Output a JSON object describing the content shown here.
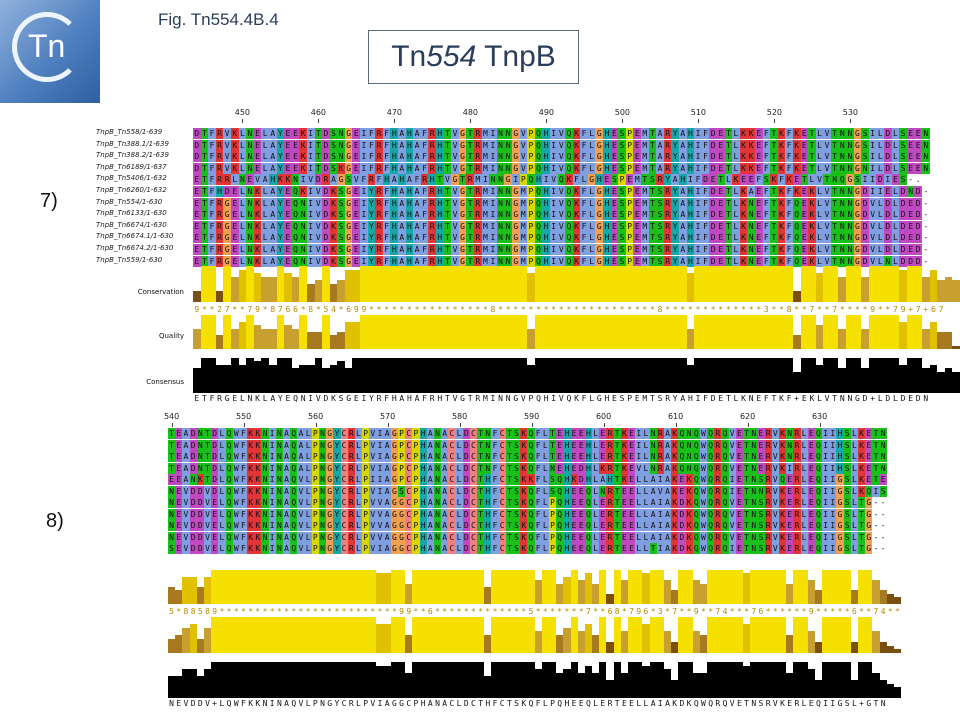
{
  "logo": {
    "text": "Tn"
  },
  "figure_label": "Fig. Tn554.4B.4",
  "title": {
    "prefix": "Tn",
    "italic": "554",
    "suffix": " TnpB"
  },
  "palette": {
    "A": "#7f9fe0",
    "I": "#7f9fe0",
    "L": "#7f9fe0",
    "M": "#7f9fe0",
    "F": "#7f9fe0",
    "W": "#7f9fe0",
    "V": "#7f9fe0",
    "C": "#f08080",
    "K": "#e23636",
    "R": "#e23636",
    "E": "#c048c0",
    "D": "#c048c0",
    "N": "#19c019",
    "Q": "#19c019",
    "S": "#19c019",
    "T": "#19c019",
    "G": "#f0a050",
    "P": "#d8d800",
    "H": "#16a8a8",
    "Y": "#16a8a8",
    "-": "#ffffff",
    ".": "#ffffff"
  },
  "panel7": {
    "marker": "7)",
    "ruler": [
      {
        "label": "450",
        "col": 6
      },
      {
        "label": "460",
        "col": 16
      },
      {
        "label": "470",
        "col": 26
      },
      {
        "label": "480",
        "col": 36
      },
      {
        "label": "490",
        "col": 46
      },
      {
        "label": "500",
        "col": 56
      },
      {
        "label": "510",
        "col": 66
      },
      {
        "label": "520",
        "col": 76
      },
      {
        "label": "530",
        "col": 86
      }
    ],
    "names": [
      "TnpB_Tn558/1-639",
      "TnpB_Tn388.1/1-639",
      "TnpB_Tn388.2/1-639",
      "TnpB_Tn6189/1-637",
      "TnpB_Tn5406/1-632",
      "TnpB_Tn6260/1-632",
      "TnpB_Tn554/1-630",
      "TnpB_Tn6133/1-630",
      "TnpB_Tn6674/1-630",
      "TnpB_Tn6674.1/1-630",
      "TnpB_Tn6674.2/1-630",
      "TnpB_Tn559/1-630"
    ],
    "rows": [
      "DTFRVKLNELAYEEKITDSNGEIFRFHAHAFRHTVGTRMINNGVPQHIVQKFLGHESPEMTARYAHIFDETLKKEFTKFKETLVTNNGSILDLSEEN",
      "DTFRVKLNELAYEEKITDSNGEIFRFHAHAFRHTVGTRMINNGVPQHIVQKFLGHESPEMTARYAHIFDETLKKEFTKFKETLVTNNGSILDLSEEN",
      "DTFRVKLNELAYEEKITDSNGEIFRFHAHAFRHTVGTRMINNGVPQHIVQKFLGHESPEMTARYAHIFDETLKKEFTKFKETLVTNNGSILDLSEEN",
      "DTFRVKLNELAYEEKITDSKGEIFRFHAHAFRHTVGTRMINNGVPQHIVQKFLGHESPEMTARYAHIFDETLKKEFTKFKETLVTNNGNILDLSEEN",
      "ETFRRLNEVAHKKNIVDRAGSVFRFHAHAFRHTVGTRMINNGIPQHIVQKFLGHESPEMTSRYAHIFDETLKEEFSKFKETLVTNQGSIIDIES-.",
      "ETFHDELNKLAYEQKIVDKSGEIYRFHAHAFRHTVGTRMINNGMPQHIVQKFLGHESPEMTSRYAHIFDETLKAEFTKFKEKLVTNNGDIIELDND-",
      "ETFRGELNKLAYEQNIVDKSGEIYRFHAHAFRHTVGTRMINNGMPQHIVQKFLGHESPEMTSRYAHIFDETLKNEFTKFQEKLVTNNGDVLDLDED-",
      "ETFRGELNKLAYEQNIVDKSGEIYRFHAHAFRHTVGTRMINNGMPQHIVQKFLGHESPEMTSRYAHIFDETLKNEFTKFQEKLVTNNGDVLDLDED-",
      "ETFRGELNKLAYEQNIVDKSGEIYRFHAHAFRHTVGTRMINNGMPQHIVQKFLGHESPEMTSRYAHIFDETLKNEFTKFQEKLVTNNGDVLDLDED-",
      "ETFRGELNKLAYEQNIVDKSGEIYRFHAHAFRHTVGTRMINNGMPQHIVQKFLGHESPEMTSRYAHIFDETLKNEFTKFQEKLVTNNGDVLDLDED-",
      "ETFRGELNKLAYEQNIVDKSGEIYRFHAHAFRHTVGTRMINNGMPQHIVQKFLGHESPEMTSRYAHIFDETLKNEFTKFQEKLVTNNGDVLDLDED-",
      "ETFRGELNKLAYEQNIVDKSGEIYRFHAHAFRHTVGTRMINNGMPQHIVQKFLGHESPEMTSRYAHIFDETLKNEFTKFQEKLVTNNGDVLNLDDD-"
    ],
    "conservation_label": "Conservation",
    "quality_label": "Quality",
    "consensus_label": "Consensus",
    "conservation_digits": "9**27**79*8766*8*54*699****************8*********************8*************3**8**7**7****9**79+7+676",
    "conservation": [
      0.3,
      1,
      1,
      0.3,
      1,
      0.7,
      0.9,
      1,
      0.8,
      0.7,
      0.7,
      1,
      0.8,
      0.7,
      1,
      0.5,
      0.6,
      1,
      0.5,
      0.6,
      0.9,
      0.9,
      1,
      1,
      1,
      1,
      1,
      1,
      1,
      1,
      1,
      1,
      1,
      1,
      1,
      1,
      1,
      1,
      1,
      1,
      1,
      1,
      1,
      1,
      0.8,
      1,
      1,
      1,
      1,
      1,
      1,
      1,
      1,
      1,
      1,
      1,
      1,
      1,
      1,
      1,
      1,
      1,
      1,
      1,
      1,
      0.8,
      1,
      1,
      1,
      1,
      1,
      1,
      1,
      1,
      1,
      1,
      1,
      1,
      1,
      0.3,
      1,
      1,
      0.8,
      1,
      1,
      0.7,
      1,
      1,
      0.7,
      1,
      1,
      1,
      1,
      0.9,
      1,
      1,
      0.7,
      0.9,
      0.6,
      0.7,
      0.6
    ],
    "quality": [
      0.6,
      1,
      1,
      0.4,
      1,
      0.6,
      0.8,
      1,
      0.7,
      0.6,
      0.6,
      1,
      0.7,
      0.6,
      1,
      0.5,
      0.5,
      1,
      0.4,
      0.5,
      0.8,
      0.8,
      1,
      1,
      1,
      1,
      1,
      1,
      1,
      1,
      1,
      1,
      1,
      1,
      1,
      1,
      1,
      1,
      1,
      1,
      1,
      1,
      1,
      1,
      0.6,
      1,
      1,
      1,
      1,
      1,
      1,
      1,
      1,
      1,
      1,
      1,
      1,
      1,
      1,
      1,
      1,
      1,
      1,
      1,
      1,
      0.6,
      1,
      1,
      1,
      1,
      1,
      1,
      1,
      1,
      1,
      1,
      1,
      1,
      1,
      0.4,
      1,
      1,
      0.7,
      1,
      1,
      0.6,
      1,
      1,
      0.6,
      1,
      1,
      1,
      1,
      0.8,
      1,
      1,
      0.6,
      0.8,
      0.5,
      0.5,
      0.1
    ],
    "consensus": [
      0.7,
      1,
      1,
      0.8,
      0.8,
      1,
      0.8,
      1,
      0.9,
      1,
      0.8,
      1,
      1,
      0.7,
      0.8,
      0.8,
      1,
      0.7,
      0.8,
      0.9,
      0.7,
      1,
      1,
      1,
      1,
      1,
      1,
      1,
      1,
      1,
      1,
      1,
      1,
      1,
      1,
      1,
      1,
      1,
      1,
      1,
      1,
      1,
      1,
      1,
      0.8,
      1,
      1,
      1,
      1,
      1,
      1,
      1,
      1,
      1,
      1,
      1,
      1,
      1,
      1,
      1,
      1,
      1,
      1,
      1,
      1,
      0.8,
      1,
      1,
      1,
      1,
      1,
      1,
      1,
      1,
      1,
      1,
      1,
      1,
      1,
      0.6,
      1,
      1,
      0.8,
      1,
      1,
      0.7,
      1,
      1,
      0.7,
      1,
      1,
      1,
      1,
      0.8,
      1,
      1,
      0.7,
      0.8,
      0.6,
      0.7,
      0.6
    ],
    "consensus_seq": "ETFRGELNKLAYEQNIVDKSGEIYRFHAHAFRHTVGTRMINNGVPQHIVQKFLGHESPEMTSRYAHIFDETLKNEFTKF+EKLVTNNGD+LDLDEDN"
  },
  "panel8": {
    "marker": "8)",
    "ruler": [
      {
        "label": "540",
        "col": 0
      },
      {
        "label": "550",
        "col": 10
      },
      {
        "label": "560",
        "col": 20
      },
      {
        "label": "570",
        "col": 30
      },
      {
        "label": "580",
        "col": 40
      },
      {
        "label": "590",
        "col": 50
      },
      {
        "label": "600",
        "col": 60
      },
      {
        "label": "610",
        "col": 70
      },
      {
        "label": "620",
        "col": 80
      },
      {
        "label": "630",
        "col": 90
      }
    ],
    "rows": [
      "TEADNTDLQWFKKNINAQALPNGYCRLPVIAGPCPHANACLDCTNFCTSKQFLTEHEEHLERTKEILNRAKQNQWQRQVETNERVKNRLEQIIHSLKETN",
      "TEADNTDLQWFKKNINAQALPNGYCRLPVIAGPCPHANACLDCTNFCTSKQFLTEHEEHLERTKEILNRAKQNQWQRQVETNERVKNRLEQIIHSLKETN",
      "TEADNTDLQWFKKNINAQALPNGYCRLPVIAGPCPHANACLDCTNFCTSKQFLTEHEEHLERTKEILNRAKQNQWQRQVETNERVKNRLEQIIHSLKETN",
      "TEADNTDLQWFKKNINAQALPNGYCRLPVIAGPCPHANACLDCTNFCTSKQFLNEHEDHLKRTKEVLNRAKQNQWQRQVETNERVKIRLEQIIHSLKETN",
      "EEANKTDLQWFKKNINAQVLPNGYCRLPIIAGPCPHANACLDCTHFCTSKKFLSQHKDHLAHTKELLAIAKEKQWQRQIETNSRVQERLEQIIGSLKETE",
      "NEVDDVDLQWFKKNINAQVLPNGYCRLPVIAGSCPHANACLDCTHFCTSKQFLSQHEEQLNRTEELLAVAKEKQWQRQIETNNRVKERLEQIIGSLKQIS",
      "NEVDDVELQWFKKNINAQVLPNGYCRLPVVAGGCPHANACLDCTHFCTSKQFLPQHEEQLERTEELLAIAKDKQWQRQVETNSRVKERLEQIIGSLTG--",
      "NEVDDVELQWFKKNINAQVLPNGYCRLPVVAGGCPHANACLDCTHFCTSKQFLPQHEEQLERTEELLAIAKDKQWQRQVETNSRVKERLEQIIGSLTG--",
      "NEVDDVELQWFKKNINAQVLPNGYCRLPVVAGGCPHANACLDCTHFCTSKQFLPQHEEQLERTEELLAIAKDKQWQRQVETNSRVKERLEQIIGSLTG--",
      "NEVDDVELQWFKKNINAQVLPNGYCRLPVVAGGCPHANACLDCTHFCTSKQFLPQHEEQLERTEELLAIAKDKQWQRQVETNSRVKERLEQIIGSLTG--",
      "SEVDDVELQWFKKNINAQVLPNGYCRLPVIAGGCPHANACLDCTHFCTSKQFLPQHEEQLERTEELLTIAKDKQWQRQIETNSRVKERLEQIIGSLTG--"
    ],
    "conservation_digits": "5*88589*************************99**6*************5*******7**68*796*3*7**9**74***76******9*****6**74****4**74-",
    "conservation": [
      0.5,
      0.4,
      0.8,
      0.8,
      0.5,
      0.8,
      1,
      1,
      1,
      1,
      1,
      1,
      1,
      1,
      1,
      1,
      1,
      1,
      1,
      1,
      1,
      1,
      1,
      1,
      1,
      1,
      1,
      1,
      1,
      0.9,
      0.9,
      1,
      1,
      0.6,
      1,
      1,
      1,
      1,
      1,
      1,
      1,
      1,
      1,
      1,
      0.5,
      1,
      1,
      1,
      1,
      1,
      1,
      0.7,
      1,
      1,
      0.6,
      0.8,
      1,
      0.7,
      0.9,
      0.6,
      1,
      0.3,
      1,
      0.7,
      1,
      1,
      0.9,
      1,
      1,
      0.7,
      0.4,
      1,
      1,
      0.7,
      0.6,
      1,
      1,
      1,
      1,
      1,
      0.9,
      1,
      1,
      1,
      1,
      1,
      0.6,
      1,
      1,
      0.7,
      0.4,
      1,
      1,
      1,
      1,
      0.4,
      1,
      1,
      0.7,
      0.4,
      0.3,
      0.2
    ],
    "quality": [
      0.4,
      0.5,
      0.7,
      0.8,
      0.4,
      0.7,
      1,
      1,
      1,
      1,
      1,
      1,
      1,
      1,
      1,
      1,
      1,
      1,
      1,
      1,
      1,
      1,
      1,
      1,
      1,
      1,
      1,
      1,
      1,
      0.8,
      0.8,
      1,
      1,
      0.5,
      1,
      1,
      1,
      1,
      1,
      1,
      1,
      1,
      1,
      1,
      0.5,
      1,
      1,
      1,
      1,
      1,
      1,
      0.6,
      1,
      1,
      0.5,
      0.7,
      1,
      0.6,
      0.8,
      0.5,
      1,
      0.3,
      1,
      0.6,
      1,
      1,
      0.8,
      1,
      1,
      0.6,
      0.3,
      1,
      1,
      0.6,
      0.5,
      1,
      1,
      1,
      1,
      1,
      0.8,
      1,
      1,
      1,
      1,
      1,
      0.5,
      1,
      1,
      0.6,
      0.3,
      1,
      1,
      1,
      1,
      0.3,
      1,
      1,
      0.6,
      0.3,
      0.2,
      0.1
    ],
    "consensus": [
      0.6,
      0.6,
      0.8,
      0.8,
      0.6,
      0.8,
      1,
      1,
      1,
      1,
      1,
      1,
      1,
      1,
      1,
      1,
      1,
      1,
      1,
      1,
      1,
      1,
      1,
      1,
      1,
      1,
      1,
      1,
      1,
      0.9,
      0.9,
      1,
      1,
      0.7,
      1,
      1,
      1,
      1,
      1,
      1,
      1,
      1,
      1,
      1,
      0.6,
      1,
      1,
      1,
      1,
      1,
      1,
      0.8,
      1,
      1,
      0.7,
      0.8,
      1,
      0.7,
      0.9,
      0.7,
      1,
      0.5,
      1,
      0.7,
      1,
      1,
      0.9,
      1,
      1,
      0.8,
      0.5,
      1,
      1,
      0.7,
      0.7,
      1,
      1,
      1,
      1,
      1,
      0.9,
      1,
      1,
      1,
      1,
      1,
      0.7,
      1,
      1,
      0.8,
      0.5,
      1,
      1,
      1,
      1,
      0.5,
      1,
      1,
      0.7,
      0.5,
      0.4,
      0.3
    ],
    "consensus_seq": "NEVDDV+LQWFKKNINAQVLPNGYCRLPVIAGGCPHANACLDCTHFCTSKQFLPQHEEQLERTEELLAIAKDKQWQRQVETNSRVKERLEQIIGSL+GTN"
  }
}
